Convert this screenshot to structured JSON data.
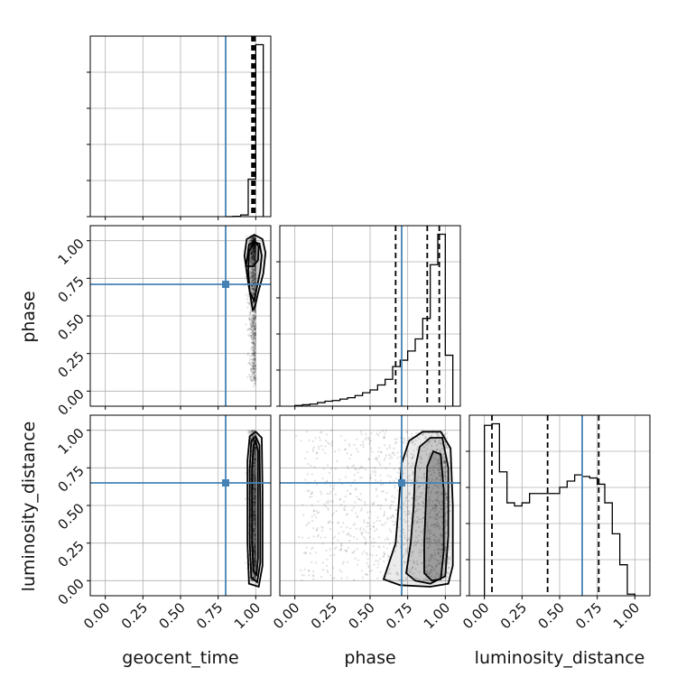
{
  "chart_data": {
    "type": "corner",
    "parameters": [
      "geocent_time",
      "phase",
      "luminosity_distance"
    ],
    "axis_labels": {
      "geocent_time": "geocent_time",
      "phase": "phase",
      "luminosity_distance": "luminosity_distance"
    },
    "ticks": [
      "0.00",
      "0.25",
      "0.50",
      "0.75",
      "1.00"
    ],
    "tick_values": [
      0,
      0.25,
      0.5,
      0.75,
      1.0
    ],
    "xlim": [
      -0.1,
      1.1
    ],
    "grid": true,
    "truths": {
      "geocent_time": 0.8,
      "phase": 0.71,
      "luminosity_distance": 0.65
    },
    "quantiles": {
      "geocent_time": [
        0.975,
        0.985,
        0.995
      ],
      "phase": [
        0.67,
        0.88,
        0.96
      ],
      "luminosity_distance": [
        0.05,
        0.42,
        0.76
      ]
    },
    "histograms": {
      "geocent_time": {
        "bins": [
          0.8,
          0.85,
          0.9,
          0.95,
          1.0,
          1.05
        ],
        "counts": [
          0,
          1,
          5,
          110,
          505
        ]
      },
      "phase": {
        "bins": [
          0.0,
          0.05,
          0.1,
          0.15,
          0.2,
          0.25,
          0.3,
          0.35,
          0.4,
          0.45,
          0.5,
          0.55,
          0.6,
          0.65,
          0.7,
          0.75,
          0.8,
          0.85,
          0.9,
          0.95,
          1.0,
          1.05
        ],
        "counts": [
          1,
          2,
          3,
          5,
          7,
          8,
          10,
          12,
          15,
          19,
          23,
          30,
          38,
          56,
          65,
          78,
          95,
          124,
          200,
          243,
          72
        ]
      },
      "luminosity_distance": {
        "bins": [
          0.0,
          0.05,
          0.1,
          0.15,
          0.2,
          0.25,
          0.3,
          0.35,
          0.4,
          0.45,
          0.5,
          0.55,
          0.6,
          0.65,
          0.7,
          0.75,
          0.8,
          0.85,
          0.9,
          0.95,
          1.0
        ],
        "counts": [
          110,
          111,
          80,
          60,
          58,
          60,
          66,
          66,
          66,
          66,
          70,
          74,
          78,
          77,
          76,
          72,
          60,
          40,
          20,
          1
        ]
      }
    },
    "contours": {
      "phase_vs_geocent_time": [
        [
          [
            0.935,
            0.83
          ],
          [
            0.955,
            0.975
          ],
          [
            0.995,
            0.995
          ],
          [
            1.02,
            0.96
          ],
          [
            1.015,
            0.87
          ],
          [
            0.985,
            0.83
          ]
        ],
        [
          [
            0.96,
            0.66
          ],
          [
            0.95,
            0.8
          ],
          [
            0.955,
            0.93
          ],
          [
            0.99,
            0.99
          ],
          [
            1.025,
            0.98
          ],
          [
            1.04,
            0.9
          ],
          [
            1.03,
            0.8
          ],
          [
            1.01,
            0.7
          ],
          [
            0.99,
            0.6
          ]
        ],
        [
          [
            0.98,
            0.54
          ],
          [
            0.95,
            0.72
          ],
          [
            0.925,
            0.9
          ],
          [
            0.94,
            1.01
          ],
          [
            0.99,
            1.04
          ],
          [
            1.045,
            1.01
          ],
          [
            1.065,
            0.92
          ],
          [
            1.05,
            0.78
          ],
          [
            1.015,
            0.65
          ],
          [
            0.995,
            0.56
          ]
        ]
      ],
      "luminosity_distance_vs_geocent_time": [
        [
          [
            0.985,
            0.06
          ],
          [
            0.975,
            0.25
          ],
          [
            0.975,
            0.5
          ],
          [
            0.975,
            0.75
          ],
          [
            0.985,
            0.9
          ],
          [
            1.0,
            0.93
          ],
          [
            1.015,
            0.86
          ],
          [
            1.015,
            0.5
          ],
          [
            1.015,
            0.15
          ],
          [
            1.005,
            0.04
          ]
        ],
        [
          [
            0.97,
            0.02
          ],
          [
            0.96,
            0.25
          ],
          [
            0.96,
            0.5
          ],
          [
            0.96,
            0.75
          ],
          [
            0.97,
            0.93
          ],
          [
            1.0,
            0.96
          ],
          [
            1.025,
            0.9
          ],
          [
            1.03,
            0.5
          ],
          [
            1.03,
            0.12
          ],
          [
            1.01,
            -0.01
          ]
        ],
        [
          [
            0.955,
            -0.02
          ],
          [
            0.945,
            0.25
          ],
          [
            0.945,
            0.5
          ],
          [
            0.945,
            0.8
          ],
          [
            0.96,
            0.96
          ],
          [
            1.0,
            0.99
          ],
          [
            1.04,
            0.95
          ],
          [
            1.045,
            0.6
          ],
          [
            1.045,
            0.1
          ],
          [
            1.02,
            -0.04
          ]
        ]
      ],
      "luminosity_distance_vs_phase": [
        [
          [
            0.86,
            0.05
          ],
          [
            0.86,
            0.25
          ],
          [
            0.87,
            0.5
          ],
          [
            0.88,
            0.76
          ],
          [
            0.92,
            0.86
          ],
          [
            0.97,
            0.84
          ],
          [
            0.99,
            0.6
          ],
          [
            0.99,
            0.2
          ],
          [
            0.97,
            0.01
          ],
          [
            0.91,
            0.0
          ]
        ],
        [
          [
            0.74,
            0.05
          ],
          [
            0.77,
            0.25
          ],
          [
            0.79,
            0.5
          ],
          [
            0.8,
            0.75
          ],
          [
            0.83,
            0.89
          ],
          [
            0.9,
            0.95
          ],
          [
            0.98,
            0.95
          ],
          [
            1.02,
            0.75
          ],
          [
            1.02,
            0.3
          ],
          [
            1.0,
            0.03
          ],
          [
            0.9,
            -0.02
          ],
          [
            0.8,
            0.0
          ]
        ],
        [
          [
            0.59,
            0.01
          ],
          [
            0.62,
            0.1
          ],
          [
            0.67,
            0.25
          ],
          [
            0.69,
            0.5
          ],
          [
            0.71,
            0.78
          ],
          [
            0.76,
            0.93
          ],
          [
            0.85,
            0.99
          ],
          [
            0.97,
            0.99
          ],
          [
            1.035,
            0.88
          ],
          [
            1.05,
            0.5
          ],
          [
            1.05,
            0.1
          ],
          [
            1.02,
            -0.02
          ],
          [
            0.9,
            -0.04
          ],
          [
            0.7,
            -0.03
          ]
        ]
      ]
    }
  }
}
